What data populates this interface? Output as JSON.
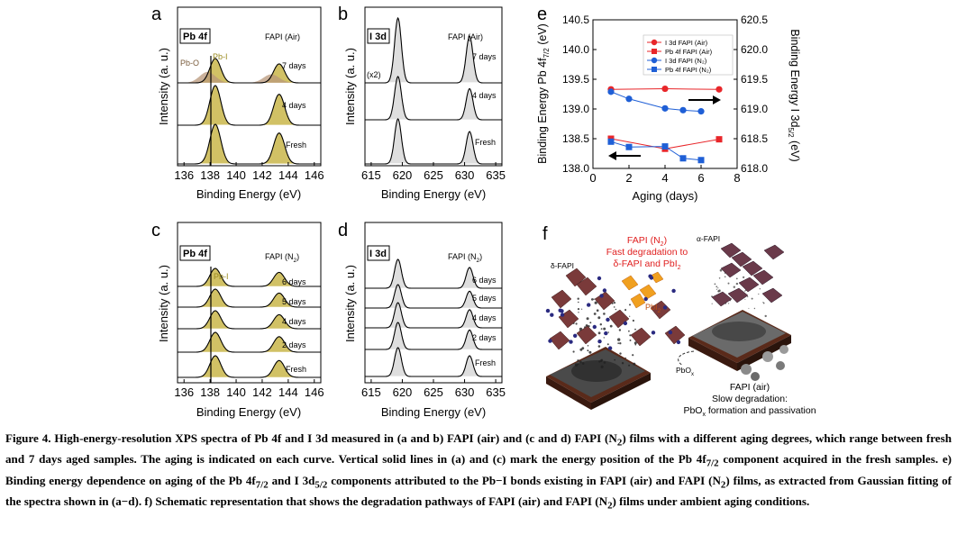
{
  "panels": {
    "a": {
      "letter": "a",
      "element": "Pb 4f",
      "condition": "FAPI (Air)",
      "labels": [
        "7 days",
        "4 days",
        "Fresh"
      ],
      "peak_labels": [
        "Pb-O",
        "Pb-I"
      ],
      "xlabel": "Binding Energy (eV)",
      "ylabel": "Intensity (a. u.)",
      "xticks": [
        "136",
        "138",
        "140",
        "142",
        "144",
        "146"
      ]
    },
    "b": {
      "letter": "b",
      "element": "I 3d",
      "condition": "FAPI (Air)",
      "labels": [
        "7 days",
        "4 days",
        "Fresh"
      ],
      "scale_note": "(x2)",
      "xlabel": "Binding Energy (eV)",
      "ylabel": "Intensity (a. u.)",
      "xticks": [
        "615",
        "620",
        "625",
        "630",
        "635"
      ]
    },
    "c": {
      "letter": "c",
      "element": "Pb 4f",
      "condition": "FAPI (N",
      "condition_sub": "2",
      "condition_end": ")",
      "labels": [
        "6 days",
        "5 days",
        "4 days",
        "2 days",
        "Fresh"
      ],
      "peak_labels": [
        "Pb-I"
      ],
      "xlabel": "Binding Energy (eV)",
      "ylabel": "Intensity (a. u.)",
      "xticks": [
        "136",
        "138",
        "140",
        "142",
        "144",
        "146"
      ]
    },
    "d": {
      "letter": "d",
      "element": "I 3d",
      "condition": "FAPI (N",
      "condition_sub": "2",
      "condition_end": ")",
      "labels": [
        "6 days",
        "5 days",
        "4 days",
        "2 days",
        "Fresh"
      ],
      "xlabel": "Binding Energy (eV)",
      "ylabel": "Intensity (a. u.)",
      "xticks": [
        "615",
        "620",
        "625",
        "630",
        "635"
      ]
    },
    "e": {
      "letter": "e",
      "xlabel": "Aging (days)",
      "ylabel_left": "Binding Energy Pb 4f7/2 (eV)",
      "ylabel_right": "Binding Energy I 3d5/2 (eV)",
      "yticks_left": [
        "138.0",
        "138.5",
        "139.0",
        "139.5",
        "140.0",
        "140.5"
      ],
      "yticks_right": [
        "618.0",
        "618.5",
        "619.0",
        "619.5",
        "620.0",
        "620.5"
      ],
      "xticks": [
        "0",
        "2",
        "4",
        "6",
        "8"
      ]
    },
    "f": {
      "letter": "f",
      "title_line1": "FAPI (N",
      "title_sub": "2",
      "title_end": ")",
      "title_line2": "Fast degradation to",
      "title_line3": "δ-FAPI and PbI",
      "title_line3_sub": "2",
      "delta_label": "δ-FAPI",
      "alpha_label": "α-FAPI",
      "pbi2_label": "PbI",
      "pbi2_sub": "2",
      "pbox_label": "PbO",
      "pbox_sub": "x",
      "air_line1": "FAPI (air)",
      "air_line2": "Slow degradation:",
      "air_line3": "PbO",
      "air_line3_sub": "x",
      "air_line3_end": " formation and passivation"
    }
  },
  "chart_data": {
    "type": "scatter",
    "xlabel": "Aging (days)",
    "ylabel": "Binding Energy Pb 4f7/2 (eV)",
    "y2label": "Binding Energy I 3d5/2 (eV)",
    "xlim": [
      0,
      8
    ],
    "ylim": [
      138.0,
      140.5
    ],
    "y2lim": [
      618.0,
      620.5
    ],
    "legend_position": "top-right",
    "series": [
      {
        "name": "I 3d   FAPI (Air)",
        "axis": "right",
        "color": "#e8262a",
        "marker": "circle",
        "x": [
          1,
          4,
          7
        ],
        "y": [
          619.33,
          619.34,
          619.33
        ]
      },
      {
        "name": "Pb 4f  FAPI (Air)",
        "axis": "left",
        "color": "#e8262a",
        "marker": "square",
        "x": [
          1,
          4,
          7
        ],
        "y": [
          138.5,
          138.33,
          138.49
        ]
      },
      {
        "name": "I 3d   FAPI (N2)",
        "axis": "right",
        "color": "#1f5fd6",
        "marker": "circle",
        "x": [
          1,
          2,
          4,
          5,
          6
        ],
        "y": [
          619.29,
          619.17,
          619.01,
          618.98,
          618.96
        ]
      },
      {
        "name": "Pb 4f  FAPI (N2)",
        "axis": "left",
        "color": "#1f5fd6",
        "marker": "square",
        "x": [
          1,
          2,
          4,
          5,
          6
        ],
        "y": [
          138.45,
          138.36,
          138.37,
          138.17,
          138.14
        ]
      }
    ]
  },
  "caption": {
    "text1": "Figure 4. High-energy-resolution XPS spectra of Pb 4f and I 3d measured in (a and b) FAPI (air) and (c and d) FAPI (N",
    "sub1": "2",
    "text2": ") films with a different aging degrees, which range between fresh and 7 days aged samples. The aging is indicated on each curve. Vertical solid lines in (a) and (c) mark the energy position of the Pb 4f",
    "sub2": "7/2",
    "text3": " component acquired in the fresh samples. e) Binding energy dependence on aging of the Pb 4f",
    "sub3": "7/2",
    "text4": " and I 3d",
    "sub4": "5/2",
    "text5": " components attributed to the Pb−I bonds existing in FAPI (air) and FAPI (N",
    "sub5": "2",
    "text6": ") films, as extracted from Gaussian fitting of the spectra shown in (a−d). f) Schematic representation that shows the degradation pathways of FAPI (air) and FAPI (N",
    "sub6": "2",
    "text7": ") films under ambient aging conditions."
  },
  "colors": {
    "fill_pb": "#c9b64a",
    "fill_pbo": "#b8977a",
    "fill_i": "#d8d8d8",
    "air": "#e8262a",
    "n2": "#1f5fd6",
    "label_olive": "#9a8a1e"
  }
}
